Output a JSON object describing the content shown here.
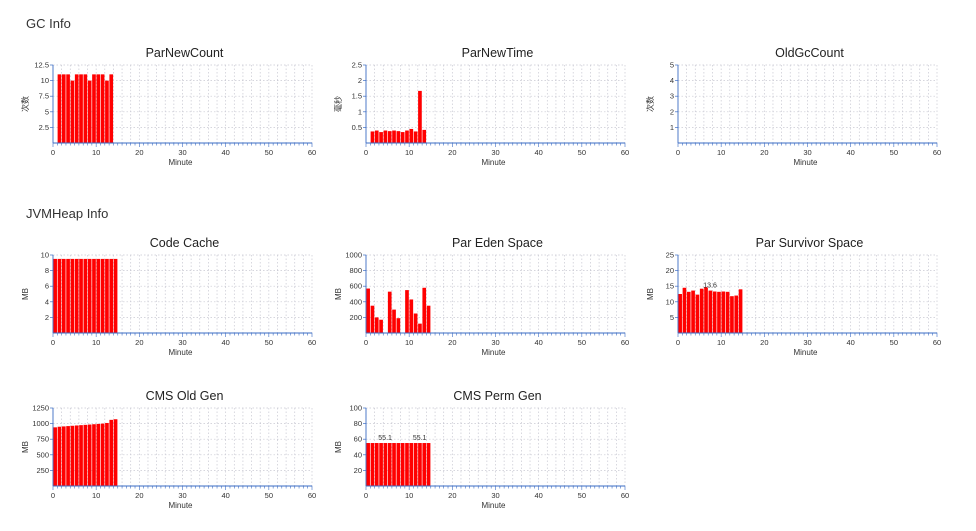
{
  "sections": {
    "gc": "GC Info",
    "jvm": "JVMHeap Info"
  },
  "colors": {
    "bar": "#ff0000",
    "grid": "#c8c8d2",
    "axis": "#3b6cc4"
  },
  "chart_data": [
    {
      "id": "parnewcount",
      "type": "bar",
      "title": "ParNewCount",
      "xlabel": "Minute",
      "ylabel": "次数",
      "ylabel_vertical": true,
      "xlim": [
        0,
        60
      ],
      "xticks": [
        0,
        10,
        20,
        30,
        40,
        50,
        60
      ],
      "ylim": [
        0,
        12.5
      ],
      "yticks": [
        2.5,
        5,
        7.5,
        10,
        12.5
      ],
      "ytick_labels": [
        "2.5",
        "5",
        "7.5",
        "10",
        "12.5"
      ],
      "x": [
        1,
        2,
        3,
        4,
        5,
        6,
        7,
        8,
        9,
        10,
        11,
        12,
        13,
        14
      ],
      "values": [
        11,
        11,
        11,
        10,
        11,
        11,
        11,
        10,
        11,
        11,
        11,
        10,
        11,
        0
      ],
      "data_labels": []
    },
    {
      "id": "parnewtime",
      "type": "bar",
      "title": "ParNewTime",
      "xlabel": "Minute",
      "ylabel": "毫秒",
      "ylabel_vertical": true,
      "xlim": [
        0,
        60
      ],
      "xticks": [
        0,
        10,
        20,
        30,
        40,
        50,
        60
      ],
      "ylim": [
        0,
        2.5
      ],
      "yticks": [
        0.5,
        1,
        1.5,
        2,
        2.5
      ],
      "ytick_labels": [
        "0.5",
        "1",
        "1.5",
        "2",
        "2.5"
      ],
      "x": [
        1,
        2,
        3,
        4,
        5,
        6,
        7,
        8,
        9,
        10,
        11,
        12,
        13,
        14
      ],
      "values": [
        0.37,
        0.4,
        0.35,
        0.4,
        0.38,
        0.4,
        0.38,
        0.35,
        0.4,
        0.45,
        0.37,
        1.67,
        0.42,
        0
      ],
      "data_labels": []
    },
    {
      "id": "oldgccount",
      "type": "bar",
      "title": "OldGcCount",
      "xlabel": "Minute",
      "ylabel": "次数",
      "ylabel_vertical": true,
      "xlim": [
        0,
        60
      ],
      "xticks": [
        0,
        10,
        20,
        30,
        40,
        50,
        60
      ],
      "ylim": [
        0,
        5
      ],
      "yticks": [
        1,
        2,
        3,
        4,
        5
      ],
      "ytick_labels": [
        "1",
        "2",
        "3",
        "4",
        "5"
      ],
      "x": [],
      "values": [],
      "data_labels": []
    },
    {
      "id": "codecache",
      "type": "bar",
      "title": "Code Cache",
      "xlabel": "Minute",
      "ylabel": "MB",
      "ylabel_vertical": false,
      "xlim": [
        0,
        60
      ],
      "xticks": [
        0,
        10,
        20,
        30,
        40,
        50,
        60
      ],
      "ylim": [
        0,
        10
      ],
      "yticks": [
        2,
        4,
        6,
        8,
        10
      ],
      "ytick_labels": [
        "2",
        "4",
        "6",
        "8",
        "10"
      ],
      "x": [
        0,
        1,
        2,
        3,
        4,
        5,
        6,
        7,
        8,
        9,
        10,
        11,
        12,
        13,
        14
      ],
      "values": [
        9.5,
        9.5,
        9.5,
        9.5,
        9.5,
        9.5,
        9.5,
        9.5,
        9.5,
        9.5,
        9.5,
        9.5,
        9.5,
        9.5,
        9.5
      ],
      "data_labels": []
    },
    {
      "id": "pareden",
      "type": "bar",
      "title": "Par Eden Space",
      "xlabel": "Minute",
      "ylabel": "MB",
      "ylabel_vertical": false,
      "xlim": [
        0,
        60
      ],
      "xticks": [
        0,
        10,
        20,
        30,
        40,
        50,
        60
      ],
      "ylim": [
        0,
        1000
      ],
      "yticks": [
        200,
        400,
        600,
        800,
        1000
      ],
      "ytick_labels": [
        "200",
        "400",
        "600",
        "800",
        "1000"
      ],
      "x": [
        0,
        1,
        2,
        3,
        4,
        5,
        6,
        7,
        8,
        9,
        10,
        11,
        12,
        13,
        14
      ],
      "values": [
        570,
        350,
        200,
        170,
        0,
        530,
        300,
        190,
        0,
        550,
        430,
        250,
        120,
        580,
        350
      ],
      "data_labels": []
    },
    {
      "id": "parsurvivor",
      "type": "bar",
      "title": "Par Survivor Space",
      "xlabel": "Minute",
      "ylabel": "MB",
      "ylabel_vertical": false,
      "xlim": [
        0,
        60
      ],
      "xticks": [
        0,
        10,
        20,
        30,
        40,
        50,
        60
      ],
      "ylim": [
        0,
        25
      ],
      "yticks": [
        5,
        10,
        15,
        20,
        25
      ],
      "ytick_labels": [
        "5",
        "10",
        "15",
        "20",
        "25"
      ],
      "x": [
        0,
        1,
        2,
        3,
        4,
        5,
        6,
        7,
        8,
        9,
        10,
        11,
        12,
        13,
        14
      ],
      "values": [
        12.5,
        14.5,
        13.2,
        13.6,
        12.3,
        14.2,
        14.6,
        13.6,
        13.3,
        13.2,
        13.3,
        13.2,
        11.8,
        12,
        14
      ],
      "data_labels": [
        {
          "index": 7,
          "text": "13.6"
        }
      ]
    },
    {
      "id": "cmsoldgen",
      "type": "bar",
      "title": "CMS Old Gen",
      "xlabel": "Minute",
      "ylabel": "MB",
      "ylabel_vertical": false,
      "xlim": [
        0,
        60
      ],
      "xticks": [
        0,
        10,
        20,
        30,
        40,
        50,
        60
      ],
      "ylim": [
        0,
        1250
      ],
      "yticks": [
        250,
        500,
        750,
        1000,
        1250
      ],
      "ytick_labels": [
        "250",
        "500",
        "750",
        "1000",
        "1250"
      ],
      "x": [
        0,
        1,
        2,
        3,
        4,
        5,
        6,
        7,
        8,
        9,
        10,
        11,
        12,
        13,
        14
      ],
      "values": [
        940,
        950,
        955,
        960,
        965,
        970,
        975,
        980,
        985,
        990,
        995,
        1000,
        1010,
        1060,
        1070
      ],
      "data_labels": []
    },
    {
      "id": "cmspermgen",
      "type": "bar",
      "title": "CMS Perm Gen",
      "xlabel": "Minute",
      "ylabel": "MB",
      "ylabel_vertical": false,
      "xlim": [
        0,
        60
      ],
      "xticks": [
        0,
        10,
        20,
        30,
        40,
        50,
        60
      ],
      "ylim": [
        0,
        100
      ],
      "yticks": [
        20,
        40,
        60,
        80,
        100
      ],
      "ytick_labels": [
        "20",
        "40",
        "60",
        "80",
        "100"
      ],
      "x": [
        0,
        1,
        2,
        3,
        4,
        5,
        6,
        7,
        8,
        9,
        10,
        11,
        12,
        13,
        14
      ],
      "values": [
        55.1,
        55.1,
        55.1,
        55.1,
        55.1,
        55.1,
        55.1,
        55.1,
        55.1,
        55.1,
        55.1,
        55.1,
        55.1,
        55.1,
        55.1
      ],
      "data_labels": [
        {
          "index": 4,
          "text": "55.1"
        },
        {
          "index": 12,
          "text": "55.1"
        }
      ]
    }
  ]
}
